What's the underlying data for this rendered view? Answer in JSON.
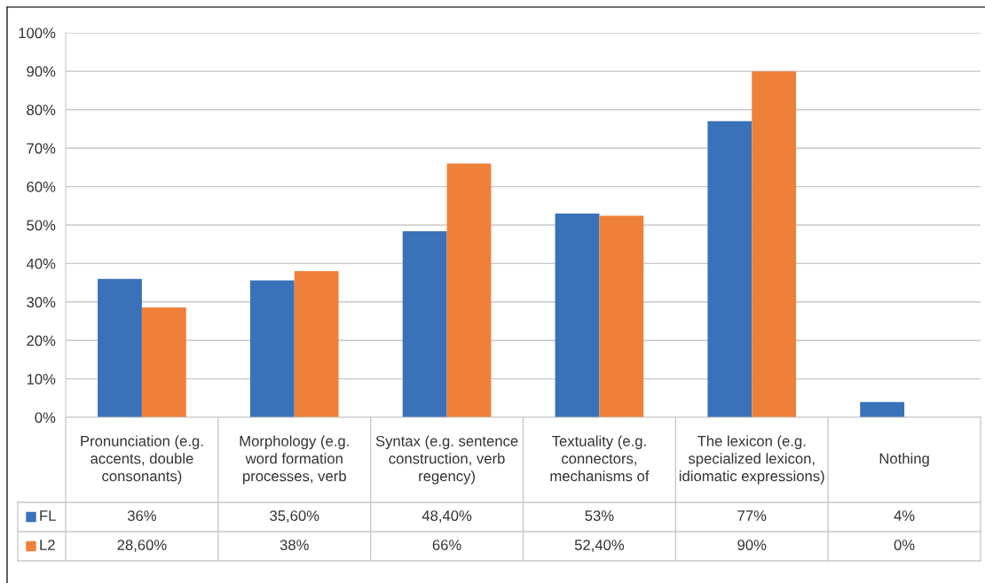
{
  "chart_data": {
    "type": "bar",
    "categories": [
      "Pronunciation (e.g.\naccents, double\nconsonants)",
      "Morphology (e.g.\nword formation\nprocesses, verb",
      "Syntax (e.g. sentence\nconstruction, verb\nregency)",
      "Textuality (e.g.\nconnectors,\nmechanisms of",
      "The lexicon (e.g.\nspecialized lexicon,\nidiomatic expressions)",
      "Nothing"
    ],
    "series": [
      {
        "name": "FL",
        "color": "#3a72b9",
        "values": [
          36,
          35.6,
          48.4,
          53,
          77,
          4
        ],
        "value_labels": [
          "36%",
          "35,60%",
          "48,40%",
          "53%",
          "77%",
          "4%"
        ]
      },
      {
        "name": "L2",
        "color": "#ee803a",
        "values": [
          28.6,
          38,
          66,
          52.4,
          90,
          0
        ],
        "value_labels": [
          "28,60%",
          "38%",
          "66%",
          "52,40%",
          "90%",
          "0%"
        ]
      }
    ],
    "ylim": [
      0,
      100
    ],
    "yticks": [
      {
        "value": 0,
        "label": "0%"
      },
      {
        "value": 10,
        "label": "10%"
      },
      {
        "value": 20,
        "label": "20%"
      },
      {
        "value": 30,
        "label": "30%"
      },
      {
        "value": 40,
        "label": "40%"
      },
      {
        "value": 50,
        "label": "50%"
      },
      {
        "value": 60,
        "label": "60%"
      },
      {
        "value": 70,
        "label": "70%"
      },
      {
        "value": 80,
        "label": "80%"
      },
      {
        "value": 90,
        "label": "90%"
      },
      {
        "value": 100,
        "label": "100%"
      }
    ],
    "grid": "y",
    "legend": "bottom"
  }
}
